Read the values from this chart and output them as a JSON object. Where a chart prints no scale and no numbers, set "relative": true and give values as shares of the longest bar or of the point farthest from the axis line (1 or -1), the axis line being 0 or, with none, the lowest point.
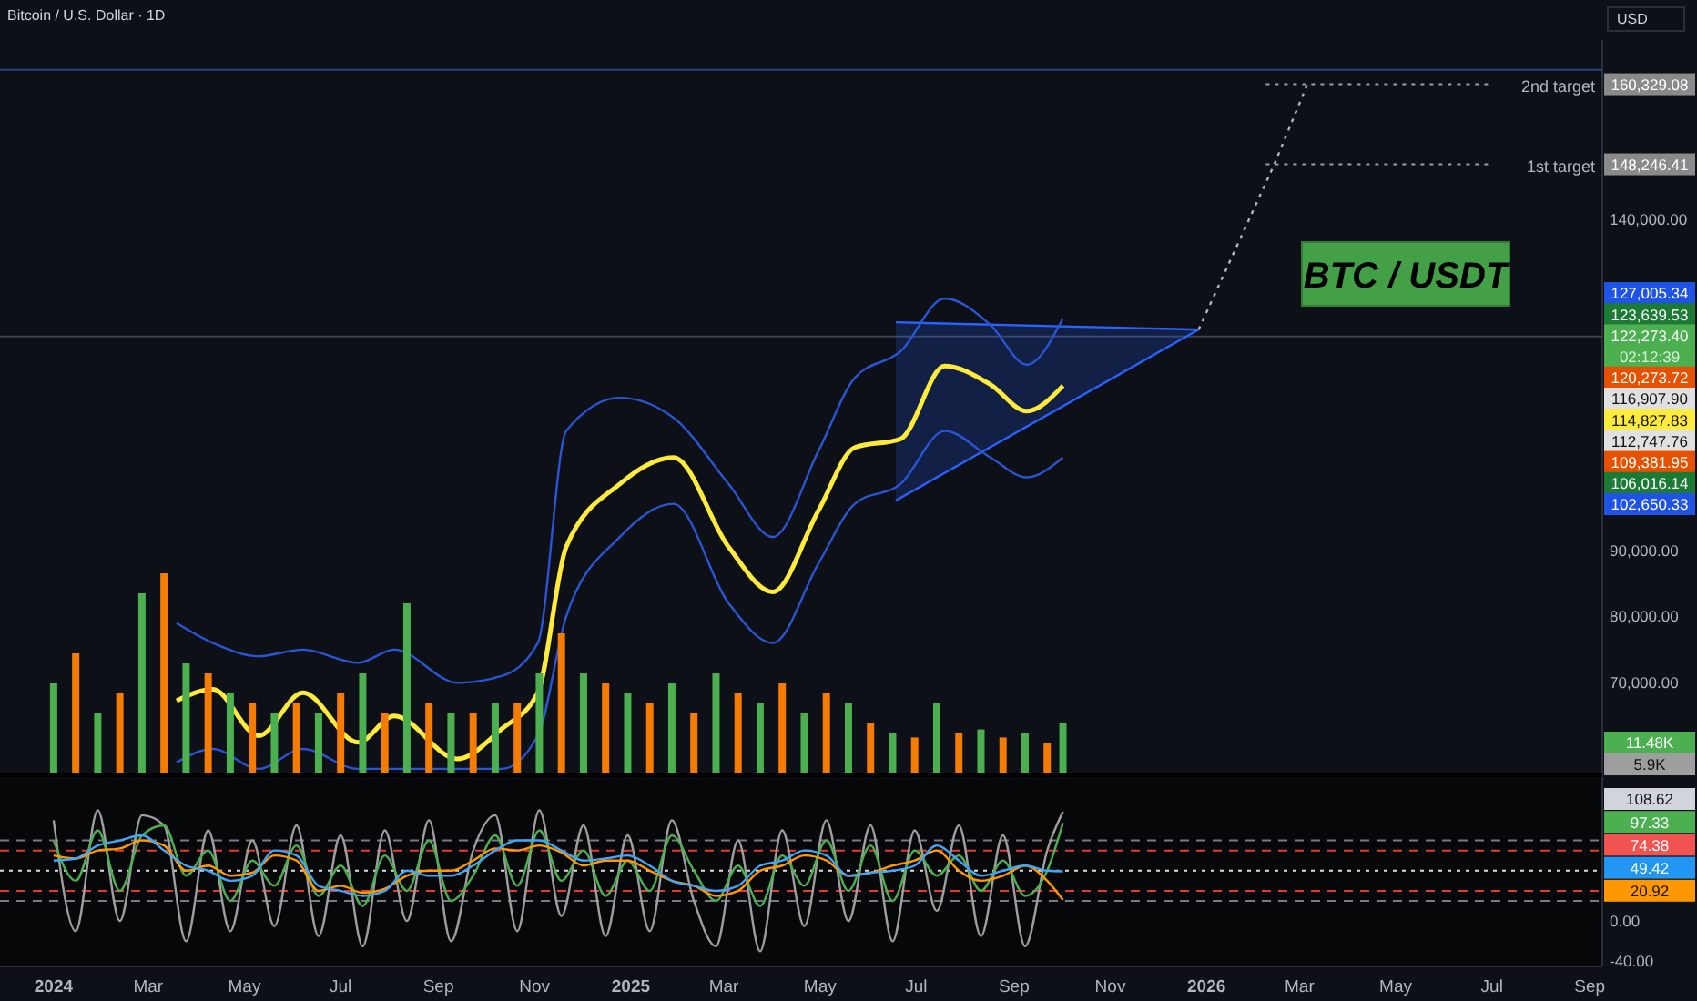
{
  "chart_data": [
    {
      "type": "line",
      "title": "Bitcoin / U.S. Dollar · 1D",
      "ylabel": "USD",
      "xlim": [
        "2023-11-28",
        "2026-09-09"
      ],
      "ylim": [
        56300,
        167000
      ],
      "yticks": [
        {
          "value": 70000,
          "label": "70,000.00"
        },
        {
          "value": 80000,
          "label": "80,000.00"
        },
        {
          "value": 90000,
          "label": "90,000.00"
        },
        {
          "value": 140000,
          "label": "140,000.00"
        }
      ],
      "tick_labels": "y",
      "grid": false,
      "line_style": "solid",
      "marker": "none",
      "x": [
        "2024-03-19",
        "2024-04-11",
        "2024-05-10",
        "2024-06-07",
        "2024-07-12",
        "2024-08-04",
        "2024-09-13",
        "2024-10-11",
        "2024-11-03",
        "2024-11-21",
        "2024-12-25",
        "2025-01-28",
        "2025-03-04",
        "2025-04-01",
        "2025-04-30",
        "2025-05-23",
        "2025-06-21",
        "2025-07-19",
        "2025-08-17",
        "2025-09-09",
        "2025-10-02"
      ],
      "series": [
        {
          "color": "#2962ff",
          "x": [
            "2025-06-18",
            "2025-12-27"
          ],
          "values": [
            124400,
            123300
          ]
        },
        {
          "color": "#2962ff",
          "x": [
            "2025-06-18",
            "2025-12-27"
          ],
          "values": [
            97500,
            123300
          ]
        },
        {
          "color": "#2a56d6",
          "values": [
            79000,
            76000,
            74000,
            75000,
            73000,
            75000,
            70000,
            71000,
            76000,
            108000,
            113000,
            110000,
            100000,
            92000,
            105000,
            116000,
            120000,
            128000,
            124000,
            118000,
            125000
          ]
        },
        {
          "color": "#2a56d6",
          "values": [
            58000,
            60000,
            57000,
            60000,
            57000,
            57000,
            57000,
            57000,
            62000,
            80000,
            92000,
            97000,
            82000,
            76000,
            88000,
            97000,
            100000,
            108000,
            104000,
            101000,
            104000
          ]
        },
        {
          "color": "#ffeb3b",
          "values": [
            67300,
            69000,
            62000,
            68500,
            61000,
            65000,
            58500,
            63000,
            68500,
            90500,
            100000,
            104000,
            90500,
            83700,
            96000,
            105500,
            106800,
            117800,
            115000,
            111000,
            114827.83
          ]
        },
        {
          "color": "#b2b5be",
          "line_style": "dotted",
          "x": [
            "2025-12-27",
            "2026-02-13",
            "2026-03-06"
          ],
          "values": [
            123300,
            148246.41,
            160329.08
          ]
        }
      ],
      "ref_lines": [
        {
          "axis": "y",
          "value": 160329.08,
          "label": "2nd target",
          "color": "#9e9e9e",
          "line_style": "dotted"
        },
        {
          "axis": "y",
          "value": 148246.41,
          "label": "1st target",
          "color": "#9e9e9e",
          "line_style": "dotted"
        },
        {
          "axis": "y",
          "value": 122273.4,
          "color": "#3a4250",
          "line_style": "solid"
        },
        {
          "axis": "y",
          "value": 162500,
          "color": "#24477f",
          "line_style": "solid"
        }
      ],
      "annotations": [
        "BTC / USDT",
        "160,329.08",
        "148,246.41",
        "127,005.34",
        "123,639.53",
        "122,273.40",
        "02:12:39",
        "120,273.72",
        "116,907.90",
        "114,827.83",
        "112,747.76",
        "109,381.95",
        "106,016.14",
        "102,650.33"
      ]
    },
    {
      "type": "bar",
      "relative": true,
      "tick_labels": false,
      "xlim": [
        "2023-11-28",
        "2026-09-09"
      ],
      "x": [
        "2024-01-01",
        "2024-01-15",
        "2024-01-29",
        "2024-02-12",
        "2024-02-26",
        "2024-03-11",
        "2024-03-25",
        "2024-04-08",
        "2024-04-22",
        "2024-05-06",
        "2024-05-20",
        "2024-06-03",
        "2024-06-17",
        "2024-07-01",
        "2024-07-15",
        "2024-07-29",
        "2024-08-12",
        "2024-08-26",
        "2024-09-09",
        "2024-09-23",
        "2024-10-07",
        "2024-10-21",
        "2024-11-04",
        "2024-11-18",
        "2024-12-02",
        "2024-12-16",
        "2024-12-30",
        "2025-01-13",
        "2025-01-27",
        "2025-02-10",
        "2025-02-24",
        "2025-03-10",
        "2025-03-24",
        "2025-04-07",
        "2025-04-21",
        "2025-05-05",
        "2025-05-19",
        "2025-06-02",
        "2025-06-16",
        "2025-06-30",
        "2025-07-14",
        "2025-07-28",
        "2025-08-11",
        "2025-08-25",
        "2025-09-08",
        "2025-09-22",
        "2025-10-02"
      ],
      "values": [
        0.45,
        0.6,
        0.3,
        0.4,
        0.9,
        1.0,
        0.55,
        0.5,
        0.4,
        0.35,
        0.3,
        0.35,
        0.3,
        0.4,
        0.5,
        0.3,
        0.85,
        0.35,
        0.3,
        0.3,
        0.35,
        0.35,
        0.5,
        0.7,
        0.5,
        0.45,
        0.4,
        0.35,
        0.45,
        0.3,
        0.5,
        0.4,
        0.35,
        0.45,
        0.3,
        0.4,
        0.35,
        0.25,
        0.2,
        0.18,
        0.35,
        0.2,
        0.22,
        0.18,
        0.2,
        0.15,
        0.25
      ],
      "colors": [
        "#4caf50",
        "#f57c00",
        "#4caf50",
        "#f57c00",
        "#4caf50",
        "#f57c00",
        "#4caf50",
        "#f57c00",
        "#4caf50",
        "#f57c00",
        "#4caf50",
        "#f57c00",
        "#4caf50",
        "#f57c00",
        "#4caf50",
        "#f57c00",
        "#4caf50",
        "#f57c00",
        "#4caf50",
        "#f57c00",
        "#4caf50",
        "#f57c00",
        "#4caf50",
        "#f57c00",
        "#4caf50",
        "#f57c00",
        "#4caf50",
        "#f57c00",
        "#4caf50",
        "#f57c00",
        "#4caf50",
        "#f57c00",
        "#4caf50",
        "#f57c00",
        "#4caf50",
        "#f57c00",
        "#4caf50",
        "#f57c00",
        "#4caf50",
        "#f57c00",
        "#4caf50",
        "#f57c00",
        "#4caf50",
        "#f57c00",
        "#4caf50",
        "#f57c00",
        "#4caf50"
      ],
      "annotations": [
        "11.48K",
        "5.9K"
      ]
    },
    {
      "type": "line",
      "xlim": [
        "2023-11-28",
        "2026-09-09"
      ],
      "ylim": [
        -45,
        141
      ],
      "xticks": [
        {
          "value": "2024-01-01",
          "label": "2024"
        },
        {
          "value": "2024-03-01",
          "label": "Mar"
        },
        {
          "value": "2024-05-01",
          "label": "May"
        },
        {
          "value": "2024-07-01",
          "label": "Jul"
        },
        {
          "value": "2024-09-01",
          "label": "Sep"
        },
        {
          "value": "2024-11-01",
          "label": "Nov"
        },
        {
          "value": "2025-01-01",
          "label": "2025"
        },
        {
          "value": "2025-03-01",
          "label": "Mar"
        },
        {
          "value": "2025-05-01",
          "label": "May"
        },
        {
          "value": "2025-07-01",
          "label": "Jul"
        },
        {
          "value": "2025-09-01",
          "label": "Sep"
        },
        {
          "value": "2025-11-01",
          "label": "Nov"
        },
        {
          "value": "2026-01-01",
          "label": "2026"
        },
        {
          "value": "2026-03-01",
          "label": "Mar"
        },
        {
          "value": "2026-05-01",
          "label": "May"
        },
        {
          "value": "2026-07-01",
          "label": "Jul"
        },
        {
          "value": "2026-09-01",
          "label": "Sep"
        }
      ],
      "yticks": [
        {
          "value": -40,
          "label": "-40.00"
        },
        {
          "value": 0,
          "label": "0.00"
        }
      ],
      "grid": false,
      "marker": "none",
      "x": [
        "2024-01-01",
        "2024-01-15",
        "2024-01-29",
        "2024-02-12",
        "2024-02-26",
        "2024-03-11",
        "2024-03-25",
        "2024-04-08",
        "2024-04-22",
        "2024-05-06",
        "2024-05-20",
        "2024-06-03",
        "2024-06-17",
        "2024-07-01",
        "2024-07-15",
        "2024-07-29",
        "2024-08-12",
        "2024-08-26",
        "2024-09-09",
        "2024-09-23",
        "2024-10-07",
        "2024-10-21",
        "2024-11-04",
        "2024-11-18",
        "2024-12-02",
        "2024-12-16",
        "2024-12-30",
        "2025-01-13",
        "2025-01-27",
        "2025-02-10",
        "2025-02-24",
        "2025-03-10",
        "2025-03-24",
        "2025-04-07",
        "2025-04-21",
        "2025-05-05",
        "2025-05-19",
        "2025-06-02",
        "2025-06-16",
        "2025-06-30",
        "2025-07-14",
        "2025-07-28",
        "2025-08-11",
        "2025-08-25",
        "2025-09-08",
        "2025-09-22",
        "2025-10-02"
      ],
      "series": [
        {
          "color": "#9e9e9e",
          "values": [
            100,
            -10,
            110,
            0,
            105,
            95,
            -20,
            90,
            -10,
            80,
            -5,
            95,
            -15,
            85,
            -25,
            90,
            0,
            100,
            -20,
            70,
            105,
            -10,
            110,
            5,
            95,
            -15,
            85,
            -10,
            100,
            20,
            -25,
            80,
            -30,
            90,
            -5,
            100,
            0,
            95,
            -20,
            90,
            10,
            95,
            -15,
            85,
            -25,
            70,
            108.62
          ]
        },
        {
          "color": "#4caf50",
          "values": [
            80,
            40,
            90,
            30,
            85,
            95,
            45,
            70,
            20,
            60,
            35,
            75,
            25,
            55,
            15,
            65,
            30,
            80,
            20,
            45,
            85,
            35,
            90,
            40,
            70,
            25,
            60,
            30,
            85,
            50,
            20,
            55,
            15,
            65,
            35,
            80,
            30,
            75,
            20,
            70,
            45,
            65,
            30,
            60,
            25,
            50,
            97.33
          ]
        },
        {
          "color": "#ff9800",
          "values": [
            65,
            62,
            70,
            72,
            80,
            75,
            50,
            55,
            45,
            48,
            65,
            60,
            30,
            35,
            28,
            32,
            45,
            50,
            50,
            60,
            72,
            70,
            75,
            68,
            55,
            60,
            60,
            50,
            40,
            35,
            25,
            30,
            50,
            55,
            65,
            60,
            45,
            48,
            55,
            60,
            70,
            50,
            40,
            45,
            55,
            40,
            20.92
          ]
        },
        {
          "color": "#42a5f5",
          "values": [
            60,
            62,
            75,
            80,
            85,
            70,
            55,
            50,
            40,
            45,
            70,
            65,
            35,
            30,
            25,
            30,
            50,
            45,
            45,
            55,
            70,
            80,
            80,
            70,
            60,
            62,
            65,
            55,
            40,
            35,
            30,
            35,
            55,
            60,
            70,
            65,
            45,
            48,
            50,
            55,
            75,
            60,
            45,
            50,
            55,
            50,
            49.42
          ]
        }
      ],
      "ref_lines": [
        {
          "axis": "y",
          "value": 80,
          "color": "#787b86",
          "line_style": "dashed"
        },
        {
          "axis": "y",
          "value": 70,
          "color": "#e53935",
          "line_style": "dashed"
        },
        {
          "axis": "y",
          "value": 50,
          "color": "#e0e0e0",
          "line_style": "dotted"
        },
        {
          "axis": "y",
          "value": 30,
          "color": "#e53935",
          "line_style": "dashed"
        },
        {
          "axis": "y",
          "value": 20,
          "color": "#787b86",
          "line_style": "dashed"
        }
      ],
      "annotations": [
        "108.62",
        "97.33",
        "74.38",
        "49.42",
        "20.92"
      ]
    }
  ]
}
